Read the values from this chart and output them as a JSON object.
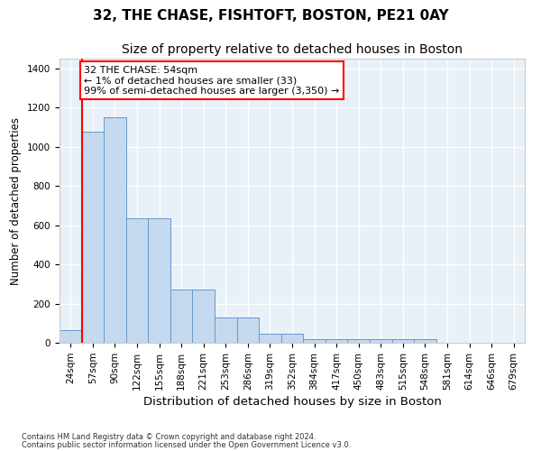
{
  "title": "32, THE CHASE, FISHTOFT, BOSTON, PE21 0AY",
  "subtitle": "Size of property relative to detached houses in Boston",
  "xlabel": "Distribution of detached houses by size in Boston",
  "ylabel": "Number of detached properties",
  "footer_line1": "Contains HM Land Registry data © Crown copyright and database right 2024.",
  "footer_line2": "Contains public sector information licensed under the Open Government Licence v3.0.",
  "bin_labels": [
    "24sqm",
    "57sqm",
    "90sqm",
    "122sqm",
    "155sqm",
    "188sqm",
    "221sqm",
    "253sqm",
    "286sqm",
    "319sqm",
    "352sqm",
    "384sqm",
    "417sqm",
    "450sqm",
    "483sqm",
    "515sqm",
    "548sqm",
    "581sqm",
    "614sqm",
    "646sqm",
    "679sqm"
  ],
  "bar_values": [
    65,
    1075,
    1150,
    635,
    635,
    270,
    270,
    130,
    130,
    48,
    48,
    20,
    20,
    20,
    20,
    18,
    18,
    0,
    0,
    0,
    0
  ],
  "bar_color": "#c5d9ee",
  "bar_edgecolor": "#6699cc",
  "vline_x_bar_index": 1,
  "annotation_text": "32 THE CHASE: 54sqm\n← 1% of detached houses are smaller (33)\n99% of semi-detached houses are larger (3,350) →",
  "annotation_box_color": "white",
  "annotation_box_edgecolor": "red",
  "vline_color": "red",
  "ylim": [
    0,
    1450
  ],
  "yticks": [
    0,
    200,
    400,
    600,
    800,
    1000,
    1200,
    1400
  ],
  "background_color": "#e8f0f8",
  "grid_color": "white",
  "title_fontsize": 11,
  "subtitle_fontsize": 10,
  "xlabel_fontsize": 9.5,
  "ylabel_fontsize": 8.5,
  "tick_fontsize": 7.5,
  "annotation_fontsize": 8,
  "footer_fontsize": 6
}
